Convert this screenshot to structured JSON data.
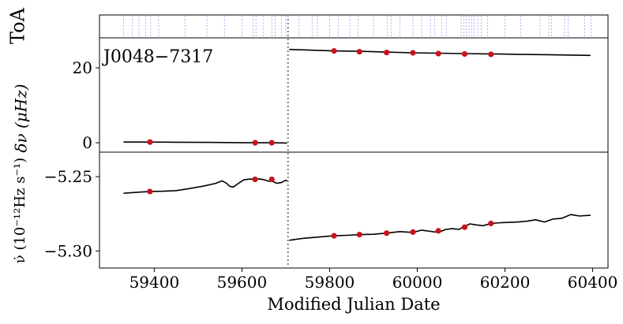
{
  "chart_data": [
    {
      "type": "scatter",
      "panel": "toa",
      "ylabel": "ToA",
      "toa_mjd": [
        59330,
        59350,
        59365,
        59380,
        59392,
        59410,
        59470,
        59520,
        59560,
        59600,
        59625,
        59632,
        59648,
        59668,
        59676,
        59690,
        59700,
        59730,
        59760,
        59772,
        59800,
        59820,
        59846,
        59865,
        59900,
        59932,
        59940,
        59960,
        59990,
        60010,
        60030,
        60040,
        60056,
        60066,
        60100,
        60106,
        60112,
        60118,
        60124,
        60130,
        60138,
        60146,
        60160,
        60200,
        60236,
        60280,
        60300,
        60306,
        60336,
        60344,
        60382,
        60396
      ],
      "xlim": [
        59275,
        60435
      ]
    },
    {
      "type": "line",
      "panel": "delta_nu",
      "annotation": "J0048−7317",
      "ylabel": "δν (μHz)",
      "yticks": [
        "0",
        "20"
      ],
      "ylim": [
        -2.5,
        28.0
      ],
      "xlim": [
        59275,
        60435
      ],
      "glitch_mjd": 59705,
      "series": [
        {
          "style": "line",
          "x": [
            59330,
            59390,
            59450,
            59520,
            59580,
            59630,
            59670,
            59703
          ],
          "y": [
            0.2,
            0.2,
            0.15,
            0.1,
            0.05,
            0.0,
            0.0,
            -0.05
          ]
        },
        {
          "style": "line",
          "x": [
            59708,
            59810,
            59870,
            59930,
            59990,
            60050,
            60110,
            60170,
            60230,
            60300,
            60395
          ],
          "y": [
            24.9,
            24.5,
            24.4,
            24.2,
            24.0,
            23.9,
            23.8,
            23.7,
            23.6,
            23.5,
            23.3
          ]
        },
        {
          "style": "points",
          "x": [
            59390,
            59630,
            59668,
            59810,
            59868,
            59930,
            59990,
            60048,
            60108,
            60168
          ],
          "y": [
            0.2,
            0.0,
            0.0,
            24.5,
            24.3,
            24.1,
            24.0,
            23.8,
            23.7,
            23.6
          ]
        }
      ]
    },
    {
      "type": "line",
      "panel": "nu_dot",
      "ylabel": "ν̇ (10⁻¹²Hz s⁻¹)",
      "xlabel": "Modified Julian Date",
      "yticks": [
        "−5.25",
        "−5.30"
      ],
      "xticks": [
        "59400",
        "59600",
        "59800",
        "60000",
        "60200",
        "60400"
      ],
      "ylim": [
        -5.3115,
        -5.2335
      ],
      "xlim": [
        59275,
        60435
      ],
      "glitch_mjd": 59705,
      "series": [
        {
          "style": "line",
          "x": [
            59330,
            59360,
            59390,
            59420,
            59450,
            59480,
            59510,
            59540,
            59555,
            59565,
            59572,
            59580,
            59592,
            59605,
            59620,
            59630,
            59640,
            59650,
            59660,
            59670,
            59680,
            59690,
            59700,
            59705
          ],
          "y": [
            -5.2612,
            -5.2605,
            -5.26,
            -5.2598,
            -5.2594,
            -5.258,
            -5.2565,
            -5.2545,
            -5.2528,
            -5.2545,
            -5.2565,
            -5.257,
            -5.2545,
            -5.252,
            -5.2516,
            -5.2518,
            -5.2515,
            -5.252,
            -5.253,
            -5.2532,
            -5.2545,
            -5.254,
            -5.2524,
            -5.253
          ]
        },
        {
          "style": "line",
          "x": [
            59708,
            59740,
            59780,
            59810,
            59840,
            59868,
            59900,
            59930,
            59960,
            59990,
            60010,
            60030,
            60048,
            60065,
            60080,
            60095,
            60108,
            60120,
            60135,
            60150,
            60168,
            60190,
            60210,
            60230,
            60250,
            60270,
            60290,
            60310,
            60330,
            60350,
            60370,
            60395
          ],
          "y": [
            -5.2928,
            -5.2915,
            -5.2905,
            -5.2898,
            -5.2895,
            -5.289,
            -5.2888,
            -5.288,
            -5.287,
            -5.2875,
            -5.286,
            -5.2868,
            -5.2875,
            -5.2855,
            -5.285,
            -5.2855,
            -5.2835,
            -5.2818,
            -5.2825,
            -5.283,
            -5.2815,
            -5.281,
            -5.2808,
            -5.2805,
            -5.28,
            -5.279,
            -5.2805,
            -5.2785,
            -5.278,
            -5.2755,
            -5.2765,
            -5.276
          ]
        },
        {
          "style": "points",
          "x": [
            59390,
            59630,
            59668,
            59810,
            59868,
            59930,
            59990,
            60048,
            60108,
            60168
          ],
          "y": [
            -5.26,
            -5.2518,
            -5.2518,
            -5.2898,
            -5.289,
            -5.288,
            -5.2873,
            -5.2865,
            -5.284,
            -5.2815
          ]
        }
      ]
    }
  ]
}
